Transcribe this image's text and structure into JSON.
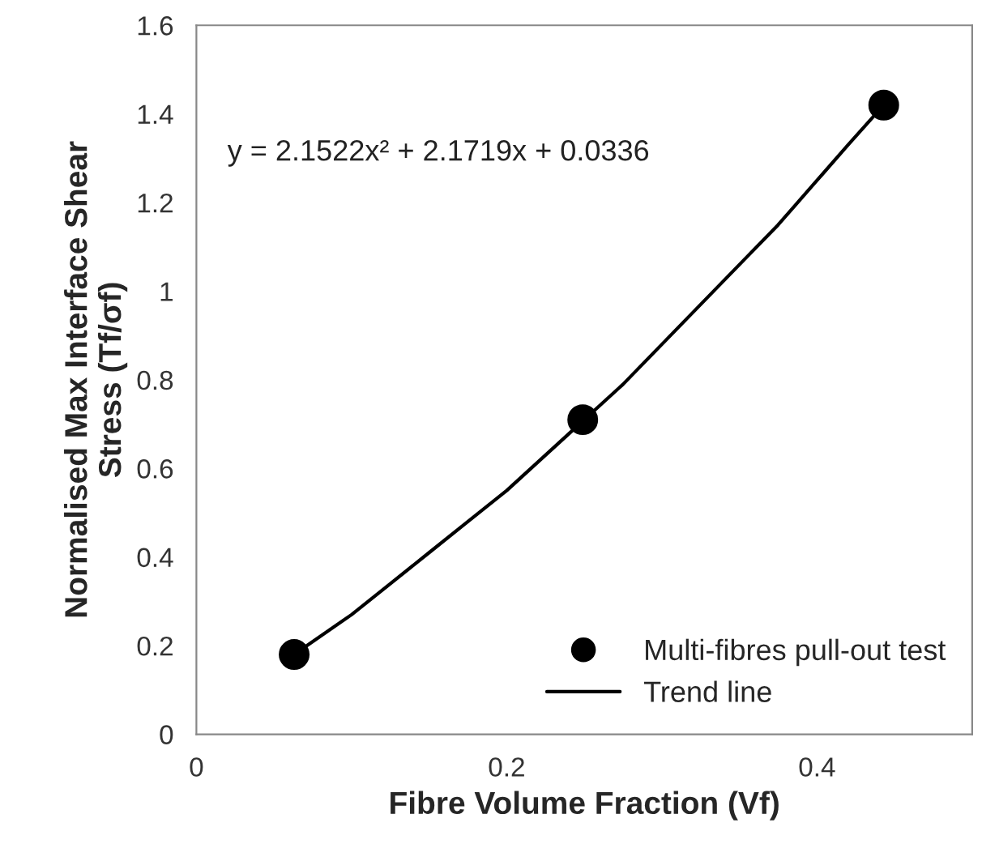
{
  "chart_data": {
    "type": "scatter",
    "xlabel": "Fibre Volume Fraction (Vf)",
    "ylabel": "Normalised Max Interface Shear\nStress (Tf/σf)",
    "xlim": [
      0,
      0.5
    ],
    "xticks": [
      0,
      0.2,
      0.4
    ],
    "ylim": [
      0,
      1.6
    ],
    "yticks": [
      0,
      0.2,
      0.4,
      0.6,
      0.8,
      1,
      1.2,
      1.4,
      1.6
    ],
    "grid": false,
    "legend": "bottom right",
    "marker": "circle",
    "annotations": [
      "y = 2.1522x² + 2.1719x + 0.0336"
    ],
    "series": [
      {
        "name": "Multi-fibres pull-out test",
        "color": "#000000",
        "x": [
          0.063,
          0.249,
          0.443
        ],
        "values": [
          0.18,
          0.71,
          1.42
        ]
      },
      {
        "name": "Trend line",
        "type": "line",
        "color": "#000000",
        "marker": "none",
        "line_style": "solid",
        "x": [
          0.063,
          0.1,
          0.125,
          0.15,
          0.175,
          0.2,
          0.225,
          0.25,
          0.275,
          0.3,
          0.325,
          0.35,
          0.375,
          0.4,
          0.42,
          0.443
        ],
        "values": [
          0.18,
          0.27,
          0.34,
          0.41,
          0.48,
          0.55,
          0.63,
          0.71,
          0.79,
          0.88,
          0.97,
          1.06,
          1.15,
          1.25,
          1.33,
          1.42
        ]
      }
    ]
  }
}
